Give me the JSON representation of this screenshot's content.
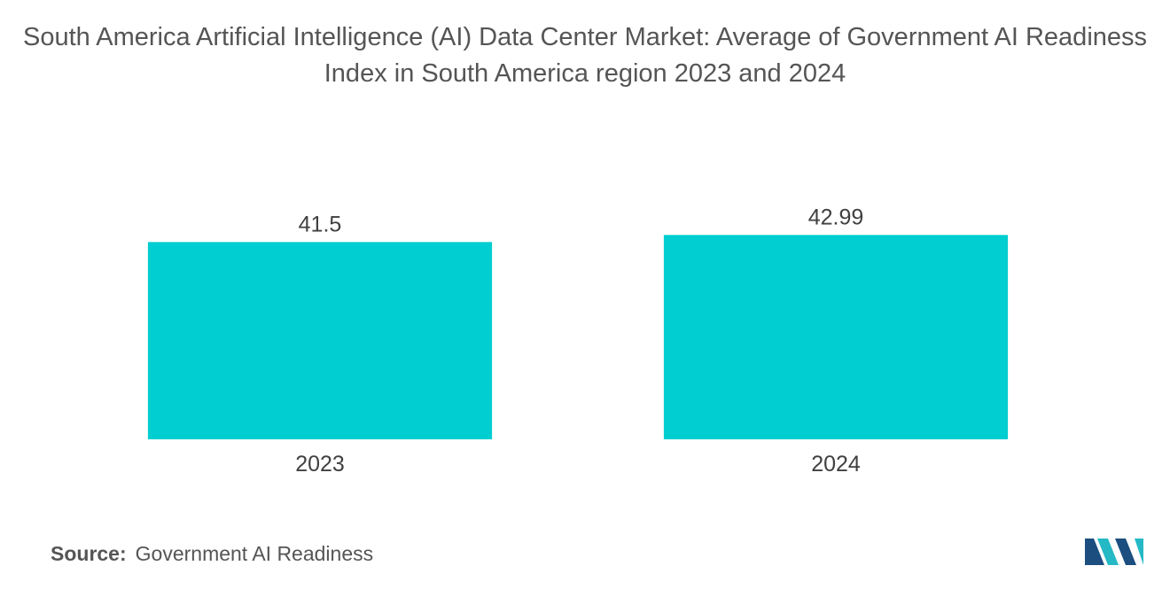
{
  "chart_data": {
    "type": "bar",
    "title": "South America Artificial Intelligence (AI) Data Center Market: Average of Government AI Readiness Index in South America region 2023 and 2024",
    "categories": [
      "2023",
      "2024"
    ],
    "values": [
      41.5,
      42.99
    ],
    "value_labels": [
      "41.5",
      "42.99"
    ],
    "xlabel": "",
    "ylabel": "",
    "ylim": [
      0,
      43.6
    ],
    "grid": false,
    "legend": "none",
    "bar_color": "#00CED1"
  },
  "source": {
    "label": "Source:",
    "text": "Government AI Readiness"
  },
  "logo": {
    "icon": "mordor-intelligence-logo-icon",
    "colors": [
      "#1C4E80",
      "#25B9C6"
    ]
  }
}
